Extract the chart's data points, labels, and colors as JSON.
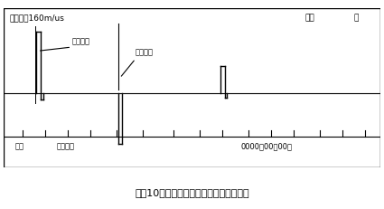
{
  "title_bottom": "图（10）低压脉冲测短路、低阻故障波形",
  "top_left_text": "传输速度160m/us",
  "top_right_text1": "全长",
  "top_right_text2": "米",
  "label_start": "起点光标",
  "label_end": "终点坐标",
  "bottom_left1": "脉冲",
  "bottom_left2": "速度选择",
  "bottom_right": "0000年00月00日",
  "bg_color": "#ffffff",
  "line_color": "#000000",
  "border_color": "#000000",
  "figsize": [
    4.25,
    2.31
  ],
  "dpi": 100
}
